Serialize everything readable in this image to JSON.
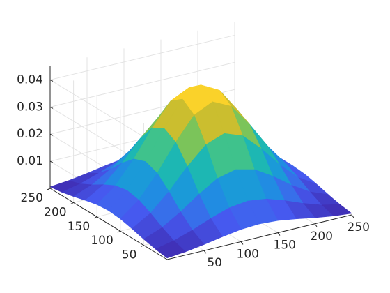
{
  "chart_data": {
    "type": "surface",
    "x": [
      0,
      25,
      50,
      75,
      100,
      125,
      150,
      175,
      200,
      225,
      250
    ],
    "y": [
      0,
      25,
      50,
      75,
      100,
      125,
      150,
      175,
      200,
      225,
      250
    ],
    "z": [
      [
        0.00056,
        0.00122,
        0.00225,
        0.00347,
        0.0045,
        0.00491,
        0.0045,
        0.00347,
        0.00225,
        0.00122,
        0.00056
      ],
      [
        0.00122,
        0.00267,
        0.00491,
        0.00758,
        0.00983,
        0.01072,
        0.00983,
        0.00758,
        0.00491,
        0.00267,
        0.00122
      ],
      [
        0.00225,
        0.00491,
        0.00902,
        0.01392,
        0.01805,
        0.01969,
        0.01805,
        0.01392,
        0.00902,
        0.00491,
        0.00225
      ],
      [
        0.00347,
        0.00758,
        0.01392,
        0.02148,
        0.02787,
        0.03039,
        0.02787,
        0.02148,
        0.01392,
        0.00758,
        0.00347
      ],
      [
        0.0045,
        0.00983,
        0.01805,
        0.02787,
        0.03615,
        0.03943,
        0.03615,
        0.02787,
        0.01805,
        0.00983,
        0.0045
      ],
      [
        0.00491,
        0.01072,
        0.01969,
        0.03039,
        0.03943,
        0.043,
        0.03943,
        0.03039,
        0.01969,
        0.01072,
        0.00491
      ],
      [
        0.0045,
        0.00983,
        0.01805,
        0.02787,
        0.03615,
        0.03943,
        0.03615,
        0.02787,
        0.01805,
        0.00983,
        0.0045
      ],
      [
        0.00347,
        0.00758,
        0.01392,
        0.02148,
        0.02787,
        0.03039,
        0.02787,
        0.02148,
        0.01392,
        0.00758,
        0.00347
      ],
      [
        0.00225,
        0.00491,
        0.00902,
        0.01392,
        0.01805,
        0.01969,
        0.01805,
        0.01392,
        0.00902,
        0.00491,
        0.00225
      ],
      [
        0.00122,
        0.00267,
        0.00491,
        0.00758,
        0.00983,
        0.01072,
        0.00983,
        0.00758,
        0.00491,
        0.00267,
        0.00122
      ],
      [
        0.00056,
        0.00122,
        0.00225,
        0.00347,
        0.0045,
        0.00491,
        0.0045,
        0.00347,
        0.00225,
        0.00122,
        0.00056
      ]
    ],
    "xlim": [
      0,
      250
    ],
    "ylim": [
      0,
      250
    ],
    "zlim": [
      0,
      0.045
    ],
    "xticks": [
      50,
      100,
      150,
      200,
      250
    ],
    "yticks": [
      50,
      100,
      150,
      200,
      250
    ],
    "zticks": [
      0.01,
      0.02,
      0.03,
      0.04
    ],
    "grid": true
  }
}
